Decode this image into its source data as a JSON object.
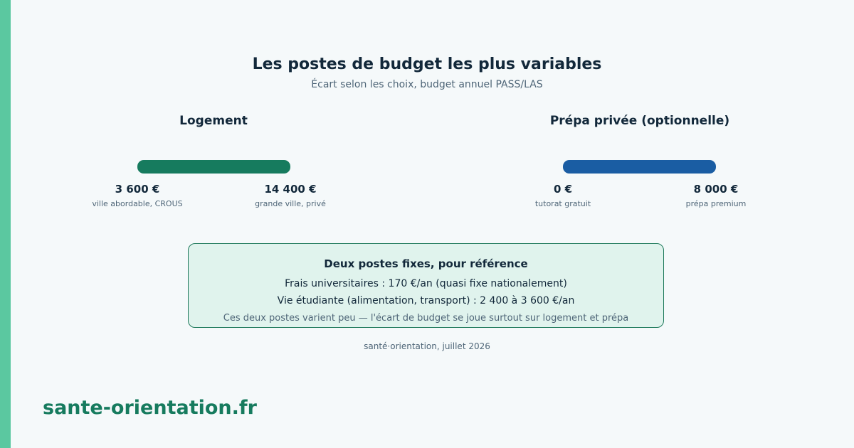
{
  "title": "Les postes de budget les plus variables",
  "subtitle": "Écart selon les choix, budget annuel PASS/LAS",
  "chart_data": {
    "type": "range",
    "unit": "€",
    "items": [
      {
        "name": "Logement",
        "min": 3600,
        "max": 14400,
        "min_label": "3 600 €",
        "max_label": "14 400 €",
        "min_note": "ville abordable, CROUS",
        "max_note": "grande ville, privé",
        "color": "#167b5e"
      },
      {
        "name": "Prépa privée (optionnelle)",
        "min": 0,
        "max": 8000,
        "min_label": "0 €",
        "max_label": "8 000 €",
        "min_note": "tutorat gratuit",
        "max_note": "prépa premium",
        "color": "#1a5da3"
      }
    ]
  },
  "reference": {
    "title": "Deux postes fixes, pour référence",
    "line1": "Frais universitaires : 170 €/an (quasi fixe nationalement)",
    "line2": "Vie étudiante (alimentation, transport) : 2 400 à 3 600 €/an",
    "note": "Ces deux postes varient peu — l'écart de budget se joue surtout sur logement et prépa"
  },
  "source": "santé·orientation, juillet 2026",
  "brand": "sante-orientation.fr",
  "colors": {
    "accent": "#5bc8a0",
    "brand": "#167b5e",
    "box_bg": "#e0f3ed"
  }
}
